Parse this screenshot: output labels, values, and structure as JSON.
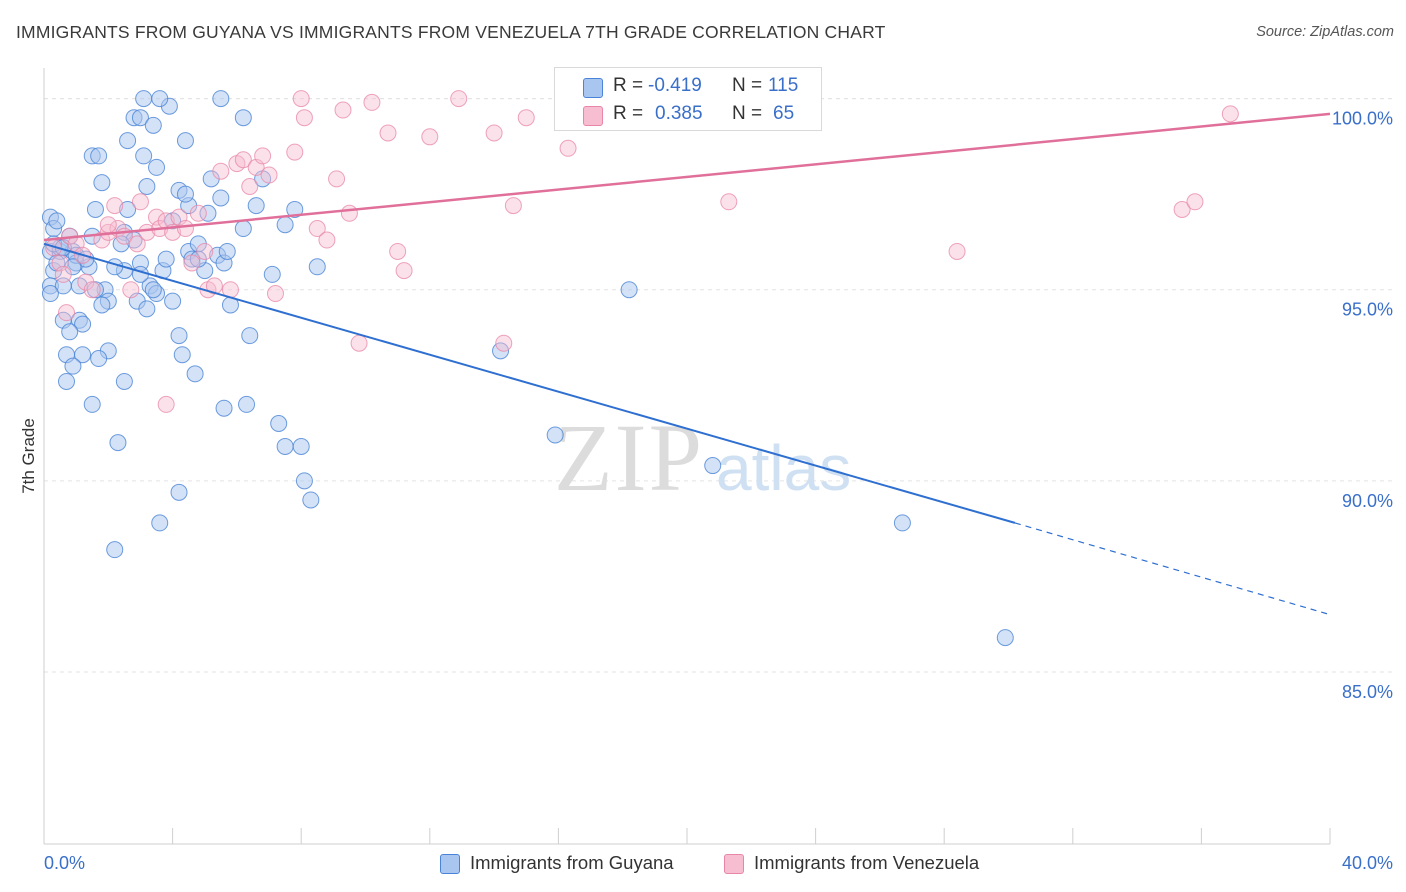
{
  "header": {
    "title": "IMMIGRANTS FROM GUYANA VS IMMIGRANTS FROM VENEZUELA 7TH GRADE CORRELATION CHART",
    "source": "Source: ZipAtlas.com"
  },
  "watermark": {
    "zip": "ZIP",
    "atlas": "atlas"
  },
  "legend": {
    "guyana": {
      "r_label": "R =",
      "r_value": "-0.419",
      "n_label": "N =",
      "n_value": "115"
    },
    "venezuela": {
      "r_label": "R =",
      "r_value": "0.385",
      "n_label": "N =",
      "n_value": "65"
    }
  },
  "bottom_legend": {
    "guyana": "Immigrants from Guyana",
    "venezuela": "Immigrants from Venezuela"
  },
  "colors": {
    "guyana_fill": "#a9c6f0",
    "guyana_stroke": "#4a84d6",
    "guyana_line": "#2e6fd0",
    "venezuela_fill": "#f7bdd0",
    "venezuela_stroke": "#e886a6",
    "venezuela_line": "#e0709a",
    "axis_label": "#3a6fc9",
    "grid": "#e3e3e3"
  },
  "chart_data": {
    "type": "scatter",
    "title": "IMMIGRANTS FROM GUYANA VS IMMIGRANTS FROM VENEZUELA 7TH GRADE CORRELATION CHART",
    "xlabel": "",
    "ylabel": "7th Grade",
    "xlim": [
      0,
      40
    ],
    "ylim": [
      80.5,
      100.8
    ],
    "x_tick_labels": [
      "0.0%",
      "40.0%"
    ],
    "y_ticks": [
      85,
      90,
      95,
      100
    ],
    "y_tick_labels": [
      "85.0%",
      "90.0%",
      "95.0%",
      "100.0%"
    ],
    "grid": true,
    "legend_position": "top-center",
    "series": [
      {
        "name": "Immigrants from Guyana",
        "r": -0.419,
        "n": 115,
        "trend": {
          "x": [
            0,
            30.2
          ],
          "y": [
            96.2,
            88.9
          ],
          "dashed_to": [
            40,
            86.5
          ]
        },
        "points": [
          [
            0.2,
            96.9
          ],
          [
            0.3,
            96.6
          ],
          [
            0.2,
            96.0
          ],
          [
            0.3,
            95.5
          ],
          [
            0.2,
            95.1
          ],
          [
            0.4,
            96.8
          ],
          [
            0.5,
            96.0
          ],
          [
            0.6,
            95.1
          ],
          [
            0.6,
            94.2
          ],
          [
            0.7,
            93.3
          ],
          [
            0.8,
            96.4
          ],
          [
            0.9,
            96.0
          ],
          [
            1.0,
            95.7
          ],
          [
            1.1,
            94.2
          ],
          [
            1.2,
            93.3
          ],
          [
            0.7,
            92.6
          ],
          [
            0.9,
            93.0
          ],
          [
            1.4,
            95.6
          ],
          [
            1.5,
            96.4
          ],
          [
            1.6,
            97.1
          ],
          [
            1.5,
            98.5
          ],
          [
            1.7,
            98.5
          ],
          [
            1.8,
            97.8
          ],
          [
            1.9,
            95.0
          ],
          [
            2.0,
            94.7
          ],
          [
            2.0,
            93.4
          ],
          [
            1.7,
            93.2
          ],
          [
            1.5,
            92.0
          ],
          [
            2.3,
            91.0
          ],
          [
            2.2,
            88.2
          ],
          [
            2.5,
            95.5
          ],
          [
            2.6,
            97.1
          ],
          [
            2.5,
            96.5
          ],
          [
            2.8,
            99.5
          ],
          [
            2.6,
            98.9
          ],
          [
            2.8,
            96.3
          ],
          [
            3.0,
            99.5
          ],
          [
            3.1,
            98.5
          ],
          [
            3.0,
            95.7
          ],
          [
            3.2,
            97.7
          ],
          [
            3.3,
            95.1
          ],
          [
            3.4,
            99.3
          ],
          [
            3.5,
            98.2
          ],
          [
            3.5,
            94.9
          ],
          [
            3.7,
            95.5
          ],
          [
            3.8,
            95.8
          ],
          [
            3.9,
            99.8
          ],
          [
            4.0,
            96.8
          ],
          [
            4.0,
            94.7
          ],
          [
            4.2,
            97.6
          ],
          [
            4.2,
            93.8
          ],
          [
            4.3,
            93.3
          ],
          [
            4.4,
            98.9
          ],
          [
            4.5,
            97.2
          ],
          [
            4.5,
            96.0
          ],
          [
            4.6,
            95.8
          ],
          [
            4.7,
            92.8
          ],
          [
            4.8,
            96.2
          ],
          [
            5.0,
            95.5
          ],
          [
            5.1,
            97.0
          ],
          [
            5.2,
            97.9
          ],
          [
            5.4,
            95.9
          ],
          [
            5.5,
            97.4
          ],
          [
            5.6,
            95.7
          ],
          [
            5.7,
            96.0
          ],
          [
            5.8,
            94.6
          ],
          [
            5.6,
            91.9
          ],
          [
            6.2,
            99.5
          ],
          [
            6.2,
            96.6
          ],
          [
            6.4,
            93.8
          ],
          [
            6.3,
            92.0
          ],
          [
            6.6,
            97.2
          ],
          [
            6.8,
            97.9
          ],
          [
            7.1,
            95.4
          ],
          [
            7.3,
            91.5
          ],
          [
            7.5,
            96.7
          ],
          [
            7.5,
            90.9
          ],
          [
            7.8,
            97.1
          ],
          [
            8.0,
            90.9
          ],
          [
            8.1,
            90.0
          ],
          [
            8.3,
            89.5
          ],
          [
            8.5,
            95.6
          ],
          [
            4.2,
            89.7
          ],
          [
            3.6,
            88.9
          ],
          [
            2.5,
            92.6
          ],
          [
            1.0,
            95.9
          ],
          [
            1.8,
            94.6
          ],
          [
            0.4,
            95.7
          ],
          [
            0.5,
            96.1
          ],
          [
            1.2,
            94.1
          ],
          [
            2.2,
            95.6
          ],
          [
            3.0,
            95.4
          ],
          [
            0.8,
            93.9
          ],
          [
            1.3,
            95.8
          ],
          [
            0.3,
            96.2
          ],
          [
            5.5,
            100.0
          ],
          [
            3.1,
            100.0
          ],
          [
            3.6,
            100.0
          ],
          [
            1.1,
            95.1
          ],
          [
            2.9,
            94.7
          ],
          [
            0.6,
            96.1
          ],
          [
            3.4,
            95.0
          ],
          [
            4.4,
            97.5
          ],
          [
            0.9,
            95.6
          ],
          [
            1.6,
            95.0
          ],
          [
            2.4,
            96.2
          ],
          [
            14.2,
            93.4
          ],
          [
            15.9,
            91.2
          ],
          [
            18.2,
            95.0
          ],
          [
            20.8,
            90.4
          ],
          [
            26.7,
            88.9
          ],
          [
            29.9,
            85.9
          ],
          [
            0.2,
            94.9
          ],
          [
            3.2,
            94.5
          ],
          [
            4.8,
            95.8
          ]
        ]
      },
      {
        "name": "Immigrants from Venezuela",
        "r": 0.385,
        "n": 65,
        "trend": {
          "x": [
            0,
            40
          ],
          "y": [
            96.3,
            99.6
          ]
        },
        "points": [
          [
            0.3,
            96.1
          ],
          [
            0.5,
            95.7
          ],
          [
            0.6,
            95.4
          ],
          [
            0.7,
            94.4
          ],
          [
            0.8,
            96.4
          ],
          [
            1.0,
            96.2
          ],
          [
            1.3,
            95.2
          ],
          [
            1.5,
            95.0
          ],
          [
            1.8,
            96.3
          ],
          [
            2.0,
            96.5
          ],
          [
            2.2,
            97.2
          ],
          [
            2.3,
            96.6
          ],
          [
            2.5,
            96.4
          ],
          [
            2.7,
            95.0
          ],
          [
            2.9,
            96.2
          ],
          [
            3.0,
            97.3
          ],
          [
            3.2,
            96.5
          ],
          [
            3.5,
            96.9
          ],
          [
            3.6,
            96.6
          ],
          [
            3.8,
            96.8
          ],
          [
            4.0,
            96.5
          ],
          [
            4.2,
            96.9
          ],
          [
            4.4,
            96.6
          ],
          [
            4.6,
            95.7
          ],
          [
            4.8,
            97.0
          ],
          [
            5.0,
            96.0
          ],
          [
            5.1,
            95.0
          ],
          [
            5.3,
            95.1
          ],
          [
            5.5,
            98.1
          ],
          [
            5.8,
            95.0
          ],
          [
            6.0,
            98.3
          ],
          [
            6.2,
            98.4
          ],
          [
            6.4,
            97.7
          ],
          [
            6.6,
            98.2
          ],
          [
            6.8,
            98.5
          ],
          [
            7.0,
            98.0
          ],
          [
            7.2,
            94.9
          ],
          [
            7.8,
            98.6
          ],
          [
            8.0,
            100.0
          ],
          [
            8.1,
            99.5
          ],
          [
            8.5,
            96.6
          ],
          [
            8.8,
            96.3
          ],
          [
            9.1,
            97.9
          ],
          [
            9.3,
            99.7
          ],
          [
            9.5,
            97.0
          ],
          [
            9.8,
            93.6
          ],
          [
            10.2,
            99.9
          ],
          [
            10.7,
            99.1
          ],
          [
            11.0,
            96.0
          ],
          [
            11.2,
            95.5
          ],
          [
            12.0,
            99.0
          ],
          [
            12.9,
            100.0
          ],
          [
            14.0,
            99.1
          ],
          [
            14.3,
            93.6
          ],
          [
            14.6,
            97.2
          ],
          [
            15.0,
            99.5
          ],
          [
            16.3,
            98.7
          ],
          [
            21.3,
            97.3
          ],
          [
            28.4,
            96.0
          ],
          [
            35.4,
            97.1
          ],
          [
            35.8,
            97.3
          ],
          [
            36.9,
            99.6
          ],
          [
            3.8,
            92.0
          ],
          [
            1.2,
            95.9
          ],
          [
            2.0,
            96.7
          ]
        ]
      }
    ]
  }
}
